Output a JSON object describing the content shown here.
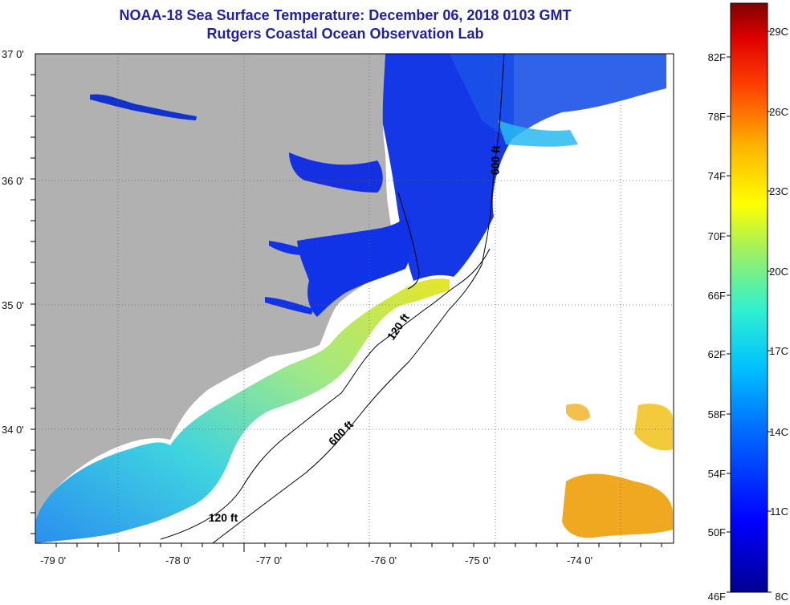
{
  "header": {
    "title": "NOAA-18 Sea Surface Temperature:  December 06, 2018 0103 GMT",
    "subtitle": "Rutgers Coastal Ocean Observation Lab"
  },
  "axes": {
    "lon_labels": [
      "-79 0'",
      "-78 0'",
      "-77 0'",
      "-76 0'",
      "-75 0'",
      "-74 0'"
    ],
    "lat_labels": [
      "37 0'",
      "36 0'",
      "35 0'",
      "34 0'"
    ]
  },
  "contours": {
    "isobath_120": "120 ft",
    "isobath_600": "600 ft"
  },
  "colorbar": {
    "fahrenheit": [
      "46F",
      "50F",
      "54F",
      "58F",
      "62F",
      "66F",
      "70F",
      "74F",
      "78F",
      "82F"
    ],
    "celsius": [
      "8C",
      "11C",
      "14C",
      "17C",
      "20C",
      "23C",
      "26C",
      "29C"
    ]
  },
  "colors": {
    "land": "#b1b1b1",
    "ocean_no_data": "#ffffff",
    "cold": "#0a1fd8",
    "cool": "#1aa0f0",
    "mild": "#48e8d2",
    "warm": "#e8e826",
    "hot": "#f2a81a"
  }
}
